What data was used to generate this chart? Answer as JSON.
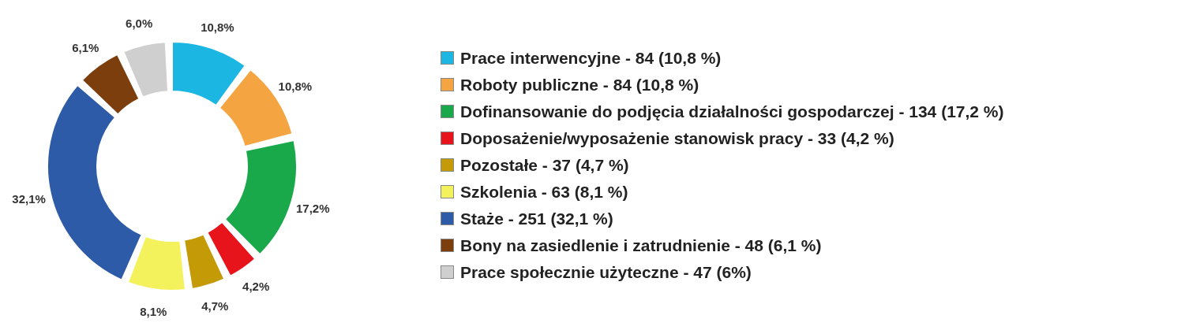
{
  "chart_data": {
    "type": "donut",
    "categories": [
      "Prace interwencyjne - 84 (10,8 %)",
      "Roboty publiczne - 84 (10,8 %)",
      "Dofinansowanie do podjęcia działalności gospodarczej - 134 (17,2 %)",
      "Doposażenie/wyposażenie stanowisk pracy - 33 (4,2 %)",
      "Pozostałe - 37 (4,7 %)",
      "Szkolenia - 63 (8,1 %)",
      "Staże - 251 (32,1 %)",
      "Bony na zasiedlenie i zatrudnienie - 48 (6,1 %)",
      "Prace społecznie użyteczne - 47 (6%)"
    ],
    "values": [
      10.8,
      10.8,
      17.2,
      4.2,
      4.7,
      8.1,
      32.1,
      6.1,
      6.0
    ],
    "value_labels": [
      "10,8%",
      "10,8%",
      "17,2%",
      "4,2%",
      "4,7%",
      "8,1%",
      "32,1%",
      "6,1%",
      "6,0%"
    ],
    "colors": [
      "#1cb6e3",
      "#f5a442",
      "#19a94b",
      "#e8141c",
      "#c49a06",
      "#f4f25c",
      "#2e5ba8",
      "#7b3e0c",
      "#cfcfcf"
    ],
    "legend": "right"
  }
}
